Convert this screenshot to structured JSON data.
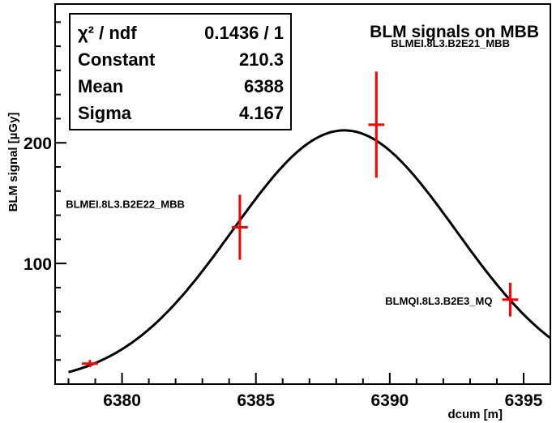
{
  "chart_data": {
    "type": "scatter",
    "title": "BLM signals on MBB",
    "xlabel": "dcum [m]",
    "ylabel": "BLM signal [µGy]",
    "xlim": [
      6377.5,
      6396
    ],
    "ylim": [
      0,
      315
    ],
    "xticks": [
      6380,
      6385,
      6390,
      6395
    ],
    "xtick_labels": [
      "6380",
      "6385",
      "6390",
      "6395"
    ],
    "yticks": [
      100,
      200
    ],
    "ytick_labels": [
      "100",
      "200"
    ],
    "grid": false,
    "points": [
      {
        "x": 6378.8,
        "y": 17,
        "xerr": 0.3,
        "yerr": 3,
        "label": ""
      },
      {
        "x": 6384.4,
        "y": 130,
        "xerr": 0.3,
        "yerr": 27,
        "label": "BLMEI.8L3.B2E22_MBB"
      },
      {
        "x": 6389.5,
        "y": 215,
        "xerr": 0.3,
        "yerr": 44,
        "label": "BLMEI.8L3.B2E21_MBB"
      },
      {
        "x": 6394.5,
        "y": 70,
        "xerr": 0.3,
        "yerr": 14,
        "label": "BLMQI.8L3.B2E3_MQ"
      }
    ],
    "fit": {
      "type": "gaussian",
      "constant": 210.3,
      "mean": 6388.3,
      "sigma": 4.167,
      "xrange": [
        6378,
        6396
      ]
    },
    "stats": [
      {
        "label": "χ² / ndf",
        "value": "0.1436 / 1"
      },
      {
        "label": "Constant",
        "value": "210.3"
      },
      {
        "label": "Mean",
        "value": "6388"
      },
      {
        "label": "Sigma",
        "value": "4.167"
      }
    ],
    "colors": {
      "points": "#ff0000",
      "fit": "#000000",
      "axes": "#000000"
    }
  }
}
